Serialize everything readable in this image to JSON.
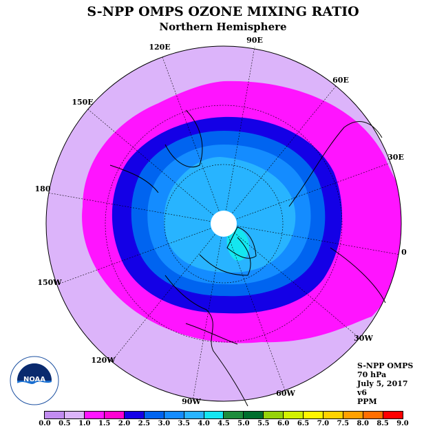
{
  "title": "S-NPP OMPS OZONE MIXING RATIO",
  "subtitle": "Northern Hemisphere",
  "meridian_labels": {
    "e90": "90E",
    "e60": "60E",
    "e30": "30E",
    "zero": "0",
    "w30": "30W",
    "w60": "60W",
    "w90": "90W",
    "w120": "120W",
    "w150": "150W",
    "d180": "180",
    "e150": "150E",
    "e120": "120E"
  },
  "info": {
    "instrument": "S-NPP OMPS",
    "level": "70 hPa",
    "date": "July 5, 2017",
    "version": "v6",
    "units": "PPM"
  },
  "colorbar": {
    "colors": [
      "#c28cf0",
      "#dcb4fa",
      "#ff14ff",
      "#ff00d2",
      "#1400e6",
      "#0064f0",
      "#148cff",
      "#28b4ff",
      "#14e6f0",
      "#1e8c3c",
      "#006e2d",
      "#96d20a",
      "#d2f000",
      "#fff500",
      "#ffd200",
      "#ffa000",
      "#ff6e00",
      "#ff0000",
      "#8c5a3c"
    ],
    "ticks": [
      "0.0",
      "0.5",
      "1.0",
      "1.5",
      "2.0",
      "2.5",
      "3.0",
      "3.5",
      "4.0",
      "4.5",
      "5.0",
      "5.5",
      "6.0",
      "6.5",
      "7.0",
      "7.5",
      "8.0",
      "8.5",
      "9.0"
    ]
  },
  "logo_text": "NOAA"
}
